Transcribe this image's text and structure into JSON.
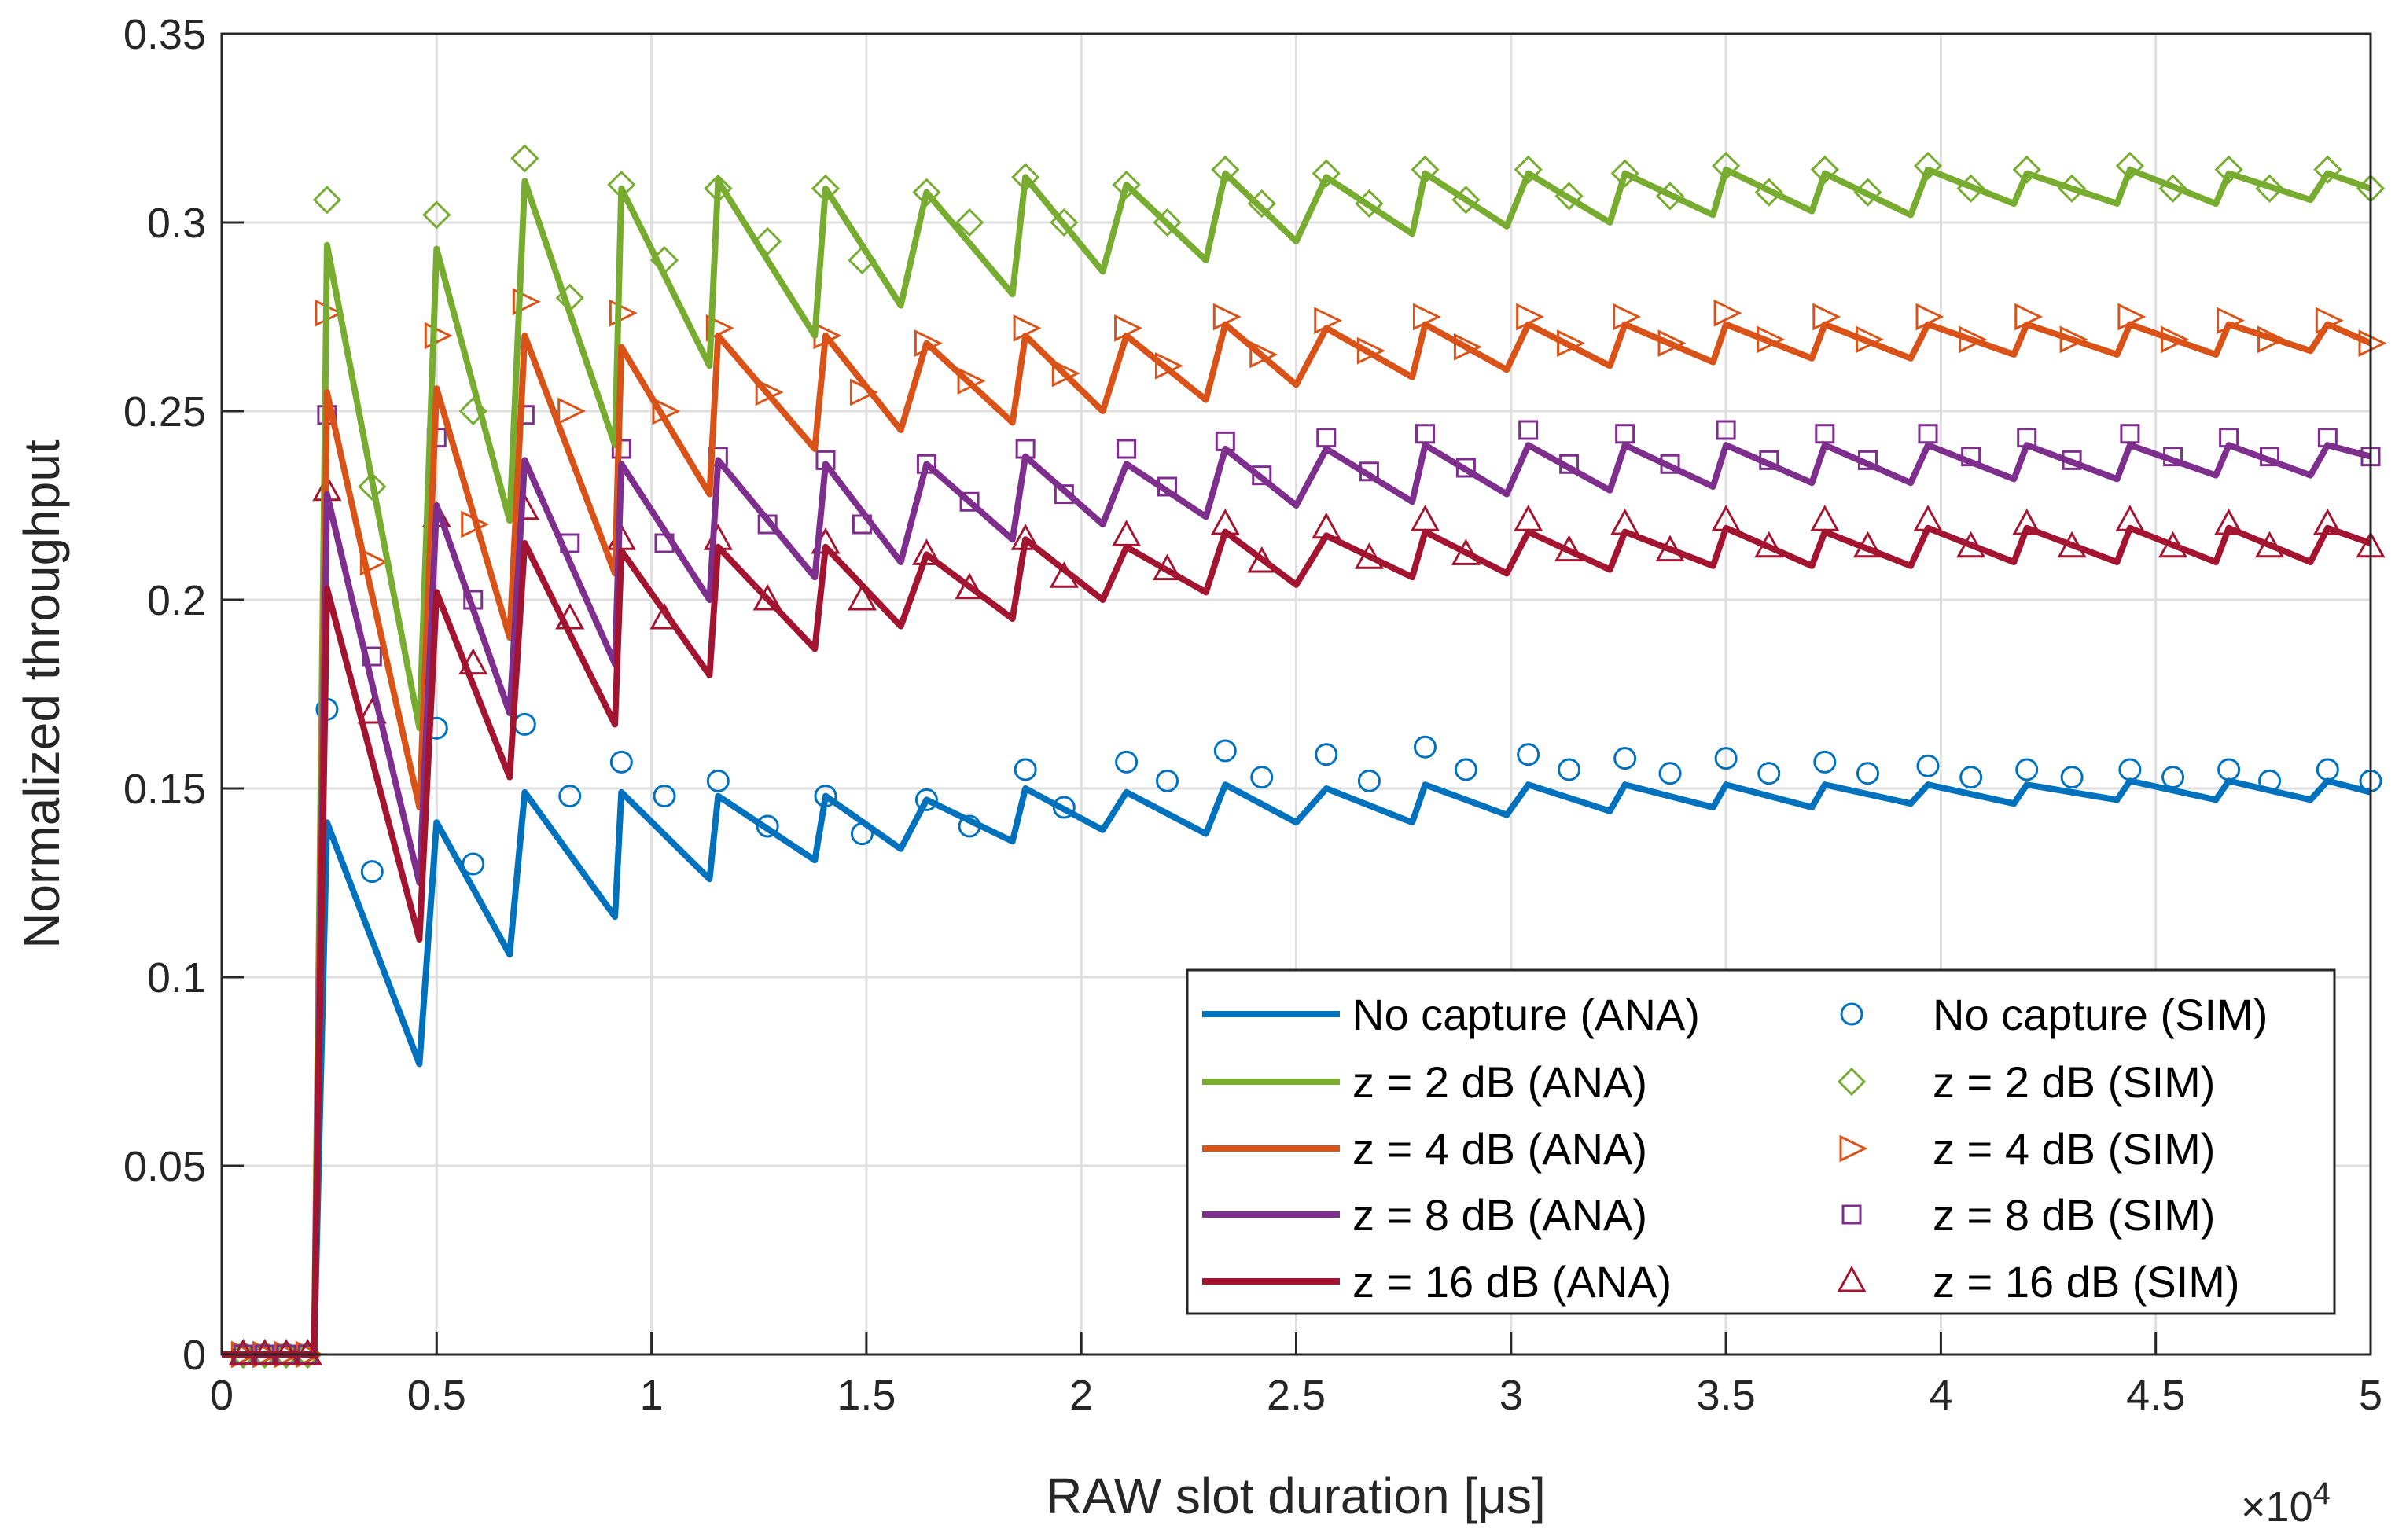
{
  "chart_data": {
    "type": "line",
    "title": "",
    "xlabel": "RAW slot duration [μs]",
    "ylabel": "Normalized throughput",
    "x_exponent_label": "×10",
    "x_exponent_power": "4",
    "xlim": [
      0,
      50000
    ],
    "ylim": [
      0,
      0.35
    ],
    "grid": true,
    "legend_position": "bottom-right",
    "xticks": [
      0,
      5000,
      10000,
      15000,
      20000,
      25000,
      30000,
      35000,
      40000,
      45000,
      50000
    ],
    "xtick_labels": [
      "0",
      "0.5",
      "1",
      "1.5",
      "2",
      "2.5",
      "3",
      "3.5",
      "4",
      "4.5",
      "5"
    ],
    "yticks": [
      0,
      0.05,
      0.1,
      0.15,
      0.2,
      0.25,
      0.3,
      0.35
    ],
    "ytick_labels": [
      "0",
      "0.05",
      "0.1",
      "0.15",
      "0.2",
      "0.25",
      "0.3",
      "0.35"
    ],
    "ana_x": [
      0,
      500,
      1000,
      1500,
      2000,
      2150,
      2450,
      4600,
      5000,
      6700,
      7050,
      9150,
      9300,
      11350,
      11550,
      13800,
      14050,
      15800,
      16400,
      18400,
      18700,
      20500,
      21050,
      22900,
      23350,
      25000,
      25700,
      27700,
      28000,
      29900,
      30400,
      32300,
      32650,
      34700,
      35000,
      37000,
      37300,
      39300,
      39700,
      41700,
      42000,
      44100,
      44400,
      46400,
      46700,
      48600,
      49000,
      50000
    ],
    "sim_x": [
      500,
      1000,
      1500,
      2000,
      2450,
      3500,
      5000,
      5850,
      7050,
      8100,
      9300,
      10300,
      11550,
      12700,
      14050,
      14900,
      16400,
      17400,
      18700,
      19600,
      21050,
      22000,
      23350,
      24200,
      25700,
      26700,
      28000,
      28950,
      30400,
      31350,
      32650,
      33700,
      35000,
      36000,
      37300,
      38300,
      39700,
      40700,
      42000,
      43050,
      44400,
      45400,
      46700,
      47650,
      49000,
      50000
    ],
    "series": [
      {
        "name": "No capture (ANA)",
        "kind": "line",
        "color": "#0072BD",
        "values": [
          0,
          0,
          0,
          0,
          0,
          0,
          0.141,
          0.077,
          0.141,
          0.106,
          0.149,
          0.116,
          0.149,
          0.126,
          0.148,
          0.131,
          0.148,
          0.134,
          0.147,
          0.136,
          0.15,
          0.139,
          0.149,
          0.138,
          0.151,
          0.141,
          0.15,
          0.141,
          0.151,
          0.143,
          0.151,
          0.144,
          0.151,
          0.145,
          0.151,
          0.145,
          0.151,
          0.146,
          0.151,
          0.146,
          0.151,
          0.147,
          0.152,
          0.147,
          0.152,
          0.147,
          0.152,
          0.149
        ]
      },
      {
        "name": "z = 2 dB (ANA)",
        "kind": "line",
        "color": "#77AC30",
        "values": [
          0,
          0,
          0,
          0,
          0,
          0,
          0.294,
          0.166,
          0.293,
          0.221,
          0.311,
          0.241,
          0.309,
          0.262,
          0.311,
          0.27,
          0.309,
          0.278,
          0.308,
          0.281,
          0.312,
          0.287,
          0.31,
          0.29,
          0.313,
          0.295,
          0.312,
          0.297,
          0.313,
          0.299,
          0.313,
          0.3,
          0.313,
          0.302,
          0.314,
          0.303,
          0.313,
          0.302,
          0.314,
          0.305,
          0.313,
          0.305,
          0.314,
          0.305,
          0.313,
          0.306,
          0.313,
          0.309
        ]
      },
      {
        "name": "z = 4 dB (ANA)",
        "kind": "line",
        "color": "#D95319",
        "values": [
          0,
          0,
          0,
          0,
          0,
          0,
          0.255,
          0.145,
          0.256,
          0.19,
          0.27,
          0.207,
          0.267,
          0.228,
          0.27,
          0.24,
          0.27,
          0.245,
          0.268,
          0.247,
          0.27,
          0.25,
          0.27,
          0.253,
          0.273,
          0.257,
          0.272,
          0.259,
          0.273,
          0.261,
          0.273,
          0.262,
          0.273,
          0.263,
          0.273,
          0.264,
          0.273,
          0.264,
          0.273,
          0.265,
          0.273,
          0.265,
          0.273,
          0.265,
          0.273,
          0.266,
          0.273,
          0.268
        ]
      },
      {
        "name": "z = 8 dB (ANA)",
        "kind": "line",
        "color": "#7E2F8E",
        "values": [
          0,
          0,
          0,
          0,
          0,
          0,
          0.228,
          0.125,
          0.225,
          0.17,
          0.237,
          0.183,
          0.236,
          0.2,
          0.237,
          0.206,
          0.236,
          0.21,
          0.236,
          0.216,
          0.238,
          0.22,
          0.236,
          0.222,
          0.24,
          0.225,
          0.24,
          0.226,
          0.241,
          0.228,
          0.241,
          0.229,
          0.241,
          0.23,
          0.241,
          0.231,
          0.241,
          0.231,
          0.241,
          0.232,
          0.241,
          0.232,
          0.241,
          0.233,
          0.241,
          0.233,
          0.241,
          0.238
        ]
      },
      {
        "name": "z = 16 dB (ANA)",
        "kind": "line",
        "color": "#A2142F",
        "values": [
          0,
          0,
          0,
          0,
          0,
          0,
          0.203,
          0.11,
          0.202,
          0.153,
          0.215,
          0.167,
          0.213,
          0.18,
          0.214,
          0.187,
          0.214,
          0.193,
          0.212,
          0.195,
          0.216,
          0.2,
          0.214,
          0.202,
          0.218,
          0.204,
          0.217,
          0.206,
          0.218,
          0.207,
          0.218,
          0.208,
          0.218,
          0.209,
          0.219,
          0.209,
          0.218,
          0.209,
          0.219,
          0.21,
          0.219,
          0.21,
          0.219,
          0.21,
          0.219,
          0.21,
          0.219,
          0.215
        ]
      },
      {
        "name": "No capture (SIM)",
        "kind": "marker",
        "marker": "circle",
        "color": "#0072BD",
        "values": [
          0,
          0,
          0,
          0,
          0.171,
          0.128,
          0.166,
          0.13,
          0.167,
          0.148,
          0.157,
          0.148,
          0.152,
          0.14,
          0.148,
          0.138,
          0.147,
          0.14,
          0.155,
          0.145,
          0.157,
          0.152,
          0.16,
          0.153,
          0.159,
          0.152,
          0.161,
          0.155,
          0.159,
          0.155,
          0.158,
          0.154,
          0.158,
          0.154,
          0.157,
          0.154,
          0.156,
          0.153,
          0.155,
          0.153,
          0.155,
          0.153,
          0.155,
          0.152,
          0.155,
          0.152
        ]
      },
      {
        "name": "z = 2 dB (SIM)",
        "kind": "marker",
        "marker": "diamond",
        "color": "#77AC30",
        "values": [
          0,
          0,
          0,
          0,
          0.306,
          0.23,
          0.302,
          0.25,
          0.317,
          0.28,
          0.31,
          0.29,
          0.309,
          0.295,
          0.309,
          0.29,
          0.308,
          0.3,
          0.312,
          0.3,
          0.31,
          0.3,
          0.314,
          0.305,
          0.313,
          0.305,
          0.314,
          0.306,
          0.314,
          0.307,
          0.313,
          0.307,
          0.315,
          0.308,
          0.314,
          0.308,
          0.315,
          0.309,
          0.314,
          0.309,
          0.315,
          0.309,
          0.314,
          0.309,
          0.314,
          0.309
        ]
      },
      {
        "name": "z = 4 dB (SIM)",
        "kind": "marker",
        "marker": "triangle-right",
        "color": "#D95319",
        "values": [
          0,
          0,
          0,
          0,
          0.276,
          0.21,
          0.27,
          0.22,
          0.279,
          0.25,
          0.276,
          0.25,
          0.272,
          0.255,
          0.27,
          0.255,
          0.268,
          0.258,
          0.272,
          0.26,
          0.272,
          0.262,
          0.275,
          0.265,
          0.274,
          0.266,
          0.275,
          0.267,
          0.275,
          0.268,
          0.275,
          0.268,
          0.276,
          0.269,
          0.275,
          0.269,
          0.275,
          0.269,
          0.275,
          0.269,
          0.275,
          0.269,
          0.274,
          0.269,
          0.274,
          0.268
        ]
      },
      {
        "name": "z = 8 dB (SIM)",
        "kind": "marker",
        "marker": "square",
        "color": "#7E2F8E",
        "values": [
          0,
          0,
          0,
          0,
          0.249,
          0.185,
          0.243,
          0.2,
          0.249,
          0.215,
          0.24,
          0.215,
          0.238,
          0.22,
          0.237,
          0.22,
          0.236,
          0.226,
          0.24,
          0.228,
          0.24,
          0.23,
          0.242,
          0.233,
          0.243,
          0.234,
          0.244,
          0.235,
          0.245,
          0.236,
          0.244,
          0.236,
          0.245,
          0.237,
          0.244,
          0.237,
          0.244,
          0.238,
          0.243,
          0.237,
          0.244,
          0.238,
          0.243,
          0.238,
          0.243,
          0.238
        ]
      },
      {
        "name": "z = 16 dB (SIM)",
        "kind": "marker",
        "marker": "triangle-up",
        "color": "#A2142F",
        "values": [
          0,
          0,
          0,
          0,
          0.229,
          0.17,
          0.222,
          0.183,
          0.224,
          0.195,
          0.216,
          0.195,
          0.216,
          0.2,
          0.215,
          0.2,
          0.212,
          0.203,
          0.216,
          0.206,
          0.217,
          0.208,
          0.22,
          0.21,
          0.219,
          0.211,
          0.221,
          0.212,
          0.221,
          0.213,
          0.22,
          0.213,
          0.221,
          0.214,
          0.221,
          0.214,
          0.221,
          0.214,
          0.22,
          0.214,
          0.221,
          0.214,
          0.22,
          0.214,
          0.22,
          0.214
        ]
      }
    ]
  }
}
